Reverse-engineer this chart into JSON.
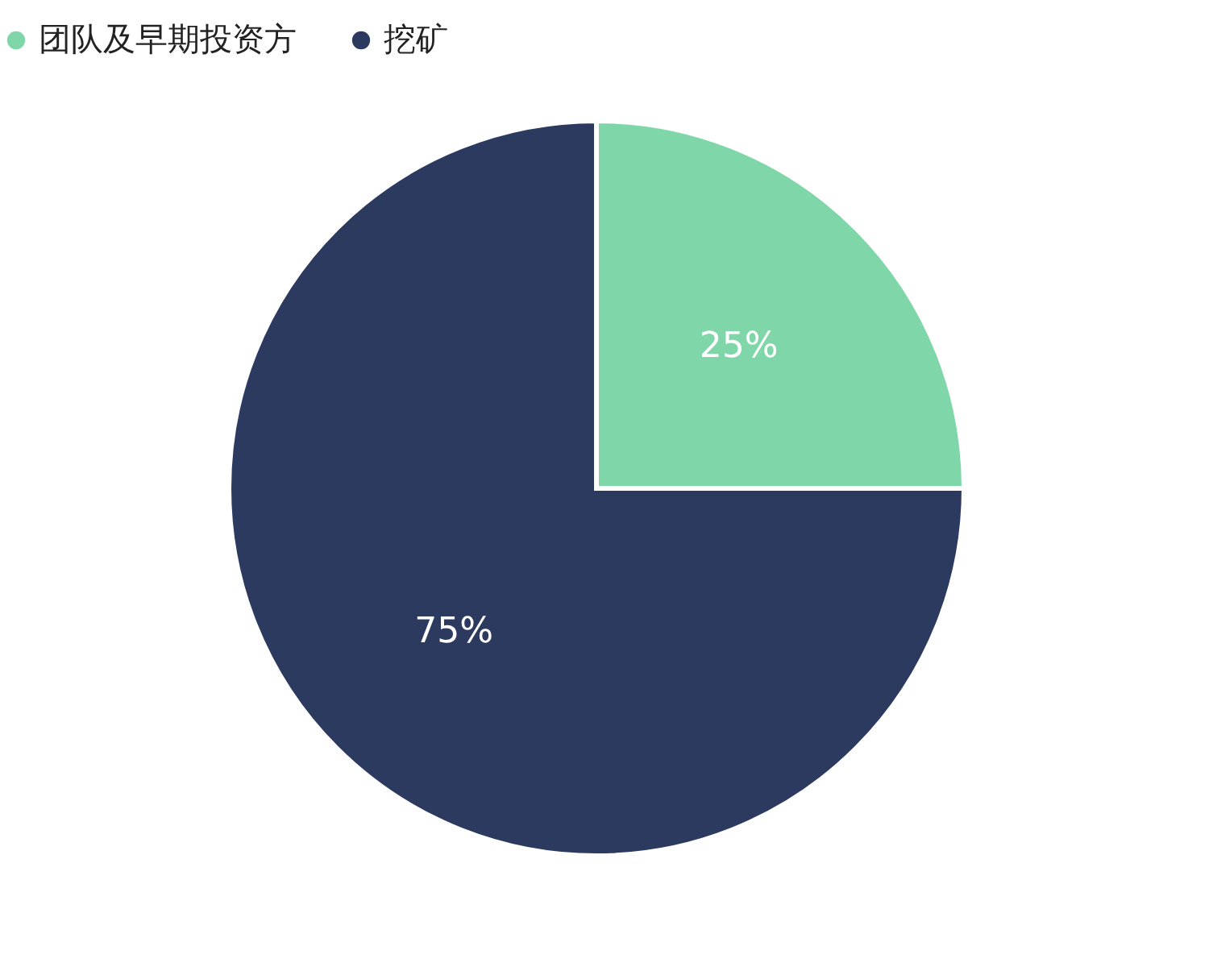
{
  "chart_data": {
    "type": "pie",
    "categories": [
      "团队及早期投资方",
      "挖矿"
    ],
    "values": [
      25,
      75
    ],
    "colors": [
      "#7fd6a8",
      "#2b3a5e"
    ],
    "value_labels": [
      "25%",
      "75%"
    ],
    "legend": "top"
  }
}
